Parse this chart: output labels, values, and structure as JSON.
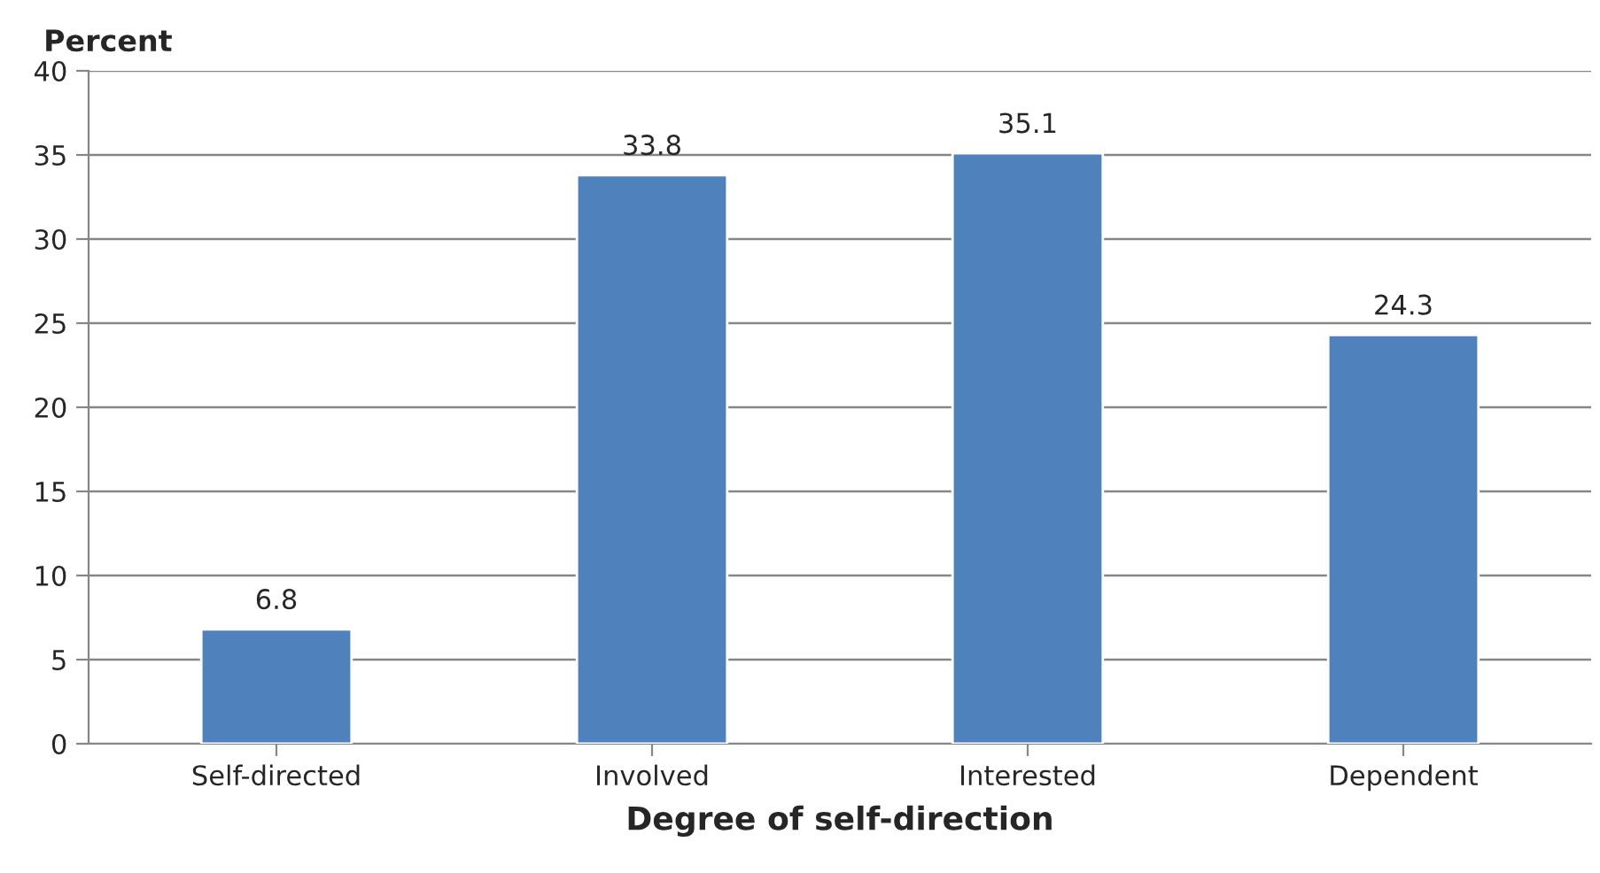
{
  "chart_data": {
    "type": "bar",
    "ylabel": "Percent",
    "xlabel": "Degree of self-direction",
    "categories": [
      "Self-directed",
      "Involved",
      "Interested",
      "Dependent"
    ],
    "values": [
      6.8,
      33.8,
      35.1,
      24.3
    ],
    "color": "#4f81bd",
    "ylim": [
      0,
      40
    ],
    "yticks": [
      0,
      5,
      10,
      15,
      20,
      25,
      30,
      35,
      40
    ],
    "grid": "y",
    "data_labels": true
  }
}
